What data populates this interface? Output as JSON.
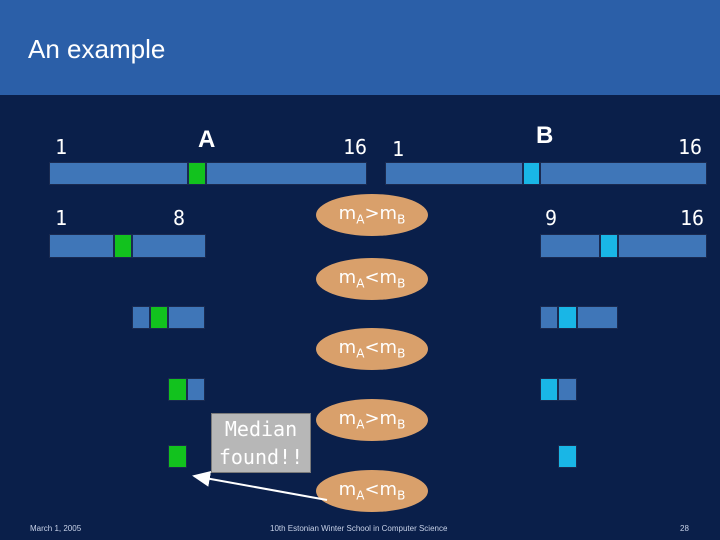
{
  "title": "An example",
  "labels": {
    "row1_left_start": "1",
    "row1_A": "A",
    "row1_left_end": "16",
    "row1_right_start": "1",
    "row1_B": "B",
    "row1_right_end": "16",
    "row2_left_start": "1",
    "row2_left_end": "8",
    "row2_right_start": "9",
    "row2_right_end": "16"
  },
  "comparisons": [
    {
      "prefix": "m",
      "a": "A",
      "op": ">",
      "b": "B"
    },
    {
      "prefix": "m",
      "a": "A",
      "op": "<",
      "b": "B"
    },
    {
      "prefix": "m",
      "a": "A",
      "op": "<",
      "b": "B"
    },
    {
      "prefix": "m",
      "a": "A",
      "op": ">",
      "b": "B"
    },
    {
      "prefix": "m",
      "a": "A",
      "op": "<",
      "b": "B"
    }
  ],
  "median_text": {
    "line1": "Median",
    "line2": "found!!"
  },
  "footer": {
    "date": "March 1, 2005",
    "event": "10th Estonian Winter School in Computer Science",
    "page": "28"
  },
  "colors": {
    "background": "#0a1f4a",
    "header": "#2b5fa8",
    "bar": "#3f76b8",
    "median_A": "#12c21e",
    "median_B": "#19b6e6",
    "oval": "#d9a06b"
  }
}
